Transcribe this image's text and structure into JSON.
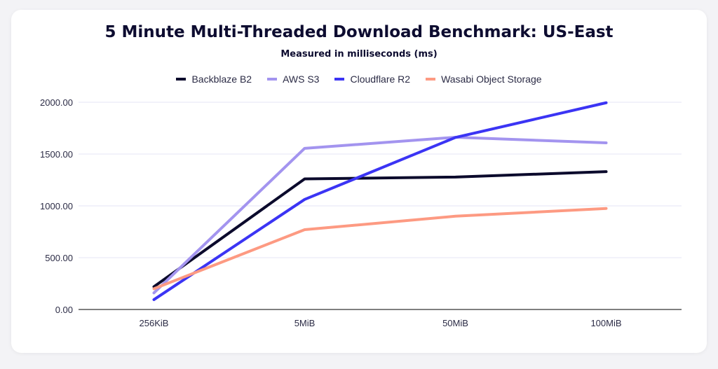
{
  "chart_data": {
    "type": "line",
    "title": "5 Minute Multi-Threaded Download Benchmark: US-East",
    "subtitle": "Measured in milliseconds (ms)",
    "categories": [
      "256KiB",
      "5MiB",
      "50MiB",
      "100MiB"
    ],
    "ylim": [
      0,
      2000
    ],
    "yticks": [
      "0.00",
      "500.00",
      "1000.00",
      "1500.00",
      "2000.00"
    ],
    "grid": true,
    "legend_position": "top",
    "series": [
      {
        "name": "Backblaze B2",
        "color": "#0b0a2c",
        "values": [
          220,
          1260,
          1278,
          1330
        ]
      },
      {
        "name": "AWS S3",
        "color": "#a394ef",
        "values": [
          160,
          1555,
          1662,
          1608
        ]
      },
      {
        "name": "Cloudflare R2",
        "color": "#3b34f4",
        "values": [
          95,
          1062,
          1660,
          1995
        ]
      },
      {
        "name": "Wasabi Object Storage",
        "color": "#fd9a82",
        "values": [
          200,
          770,
          900,
          975
        ]
      }
    ]
  }
}
